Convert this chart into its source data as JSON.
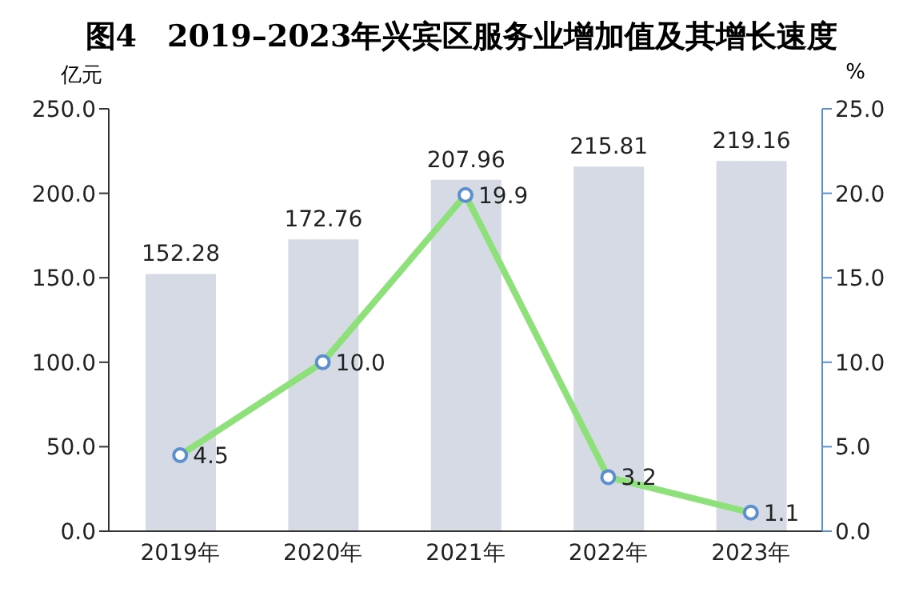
{
  "chart_data": {
    "type": "bar",
    "title": "图4　2019–2023年兴宾区服务业增加值及其增长速度",
    "ylabel": "亿元",
    "y2label": "%",
    "categories": [
      "2019年",
      "2020年",
      "2021年",
      "2022年",
      "2023年"
    ],
    "series": [
      {
        "color": "#d5dae4",
        "values": [
          152.28,
          172.76,
          207.96,
          215.81,
          219.16
        ]
      },
      {
        "type": "line",
        "axis": "y2",
        "color": "#8ee07b",
        "values": [
          4.5,
          10.0,
          19.9,
          3.2,
          1.1
        ],
        "value_labels": [
          "4.5",
          "10.0",
          "19.9",
          "3.2",
          "1.1"
        ]
      }
    ],
    "ylim": [
      0,
      250
    ],
    "yticks": [
      {
        "value": 0,
        "label": "0.0"
      },
      {
        "value": 50,
        "label": "50.0"
      },
      {
        "value": 100,
        "label": "100.0"
      },
      {
        "value": 150,
        "label": "150.0"
      },
      {
        "value": 200,
        "label": "200.0"
      },
      {
        "value": 250,
        "label": "250.0"
      }
    ],
    "y2lim": [
      0,
      25
    ],
    "y2ticks": [
      {
        "value": 0,
        "label": "0.0"
      },
      {
        "value": 5,
        "label": "5.0"
      },
      {
        "value": 10,
        "label": "10.0"
      },
      {
        "value": 15,
        "label": "15.0"
      },
      {
        "value": 20,
        "label": "20.0"
      },
      {
        "value": 25,
        "label": "25.0"
      }
    ],
    "data_labels": true,
    "grid": false,
    "legend": false,
    "marker": "circle",
    "line_style": "solid"
  }
}
